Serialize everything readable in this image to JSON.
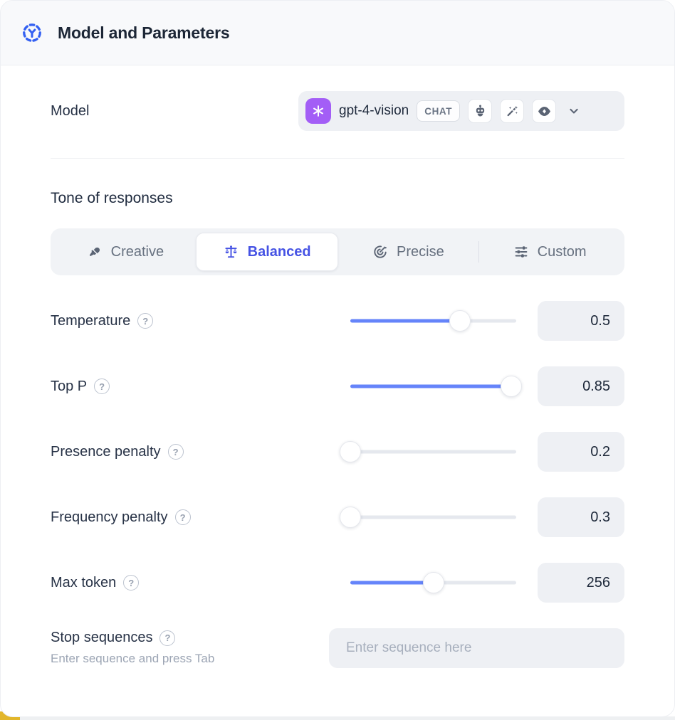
{
  "header": {
    "title": "Model and Parameters"
  },
  "model": {
    "label": "Model",
    "selected": "gpt-4-vision",
    "type_badge": "CHAT",
    "capabilities": [
      "bot-icon",
      "wand-sparkles-icon",
      "eye-sparkle-icon"
    ]
  },
  "tone": {
    "title": "Tone of responses",
    "active": "Balanced",
    "options": [
      {
        "label": "Creative",
        "icon": "paintbrush-icon"
      },
      {
        "label": "Balanced",
        "icon": "scales-icon"
      },
      {
        "label": "Precise",
        "icon": "target-arrow-icon"
      },
      {
        "label": "Custom",
        "icon": "sliders-icon"
      }
    ]
  },
  "parameters": [
    {
      "name": "Temperature",
      "value": "0.5",
      "fill_pct": 66
    },
    {
      "name": "Top P",
      "value": "0.85",
      "fill_pct": 97
    },
    {
      "name": "Presence penalty",
      "value": "0.2",
      "fill_pct": 0
    },
    {
      "name": "Frequency penalty",
      "value": "0.3",
      "fill_pct": 0
    },
    {
      "name": "Max token",
      "value": "256",
      "fill_pct": 50
    }
  ],
  "stop_sequences": {
    "label": "Stop sequences",
    "hint": "Enter sequence and press Tab",
    "placeholder": "Enter sequence here"
  },
  "help_glyph": "?",
  "colors": {
    "accent": "#4653e4",
    "slider_fill": "#6584fa",
    "model_icon_bg": "#a35ef6",
    "header_bg": "#f8f9fb",
    "corner_accent": "#e2b62b"
  }
}
